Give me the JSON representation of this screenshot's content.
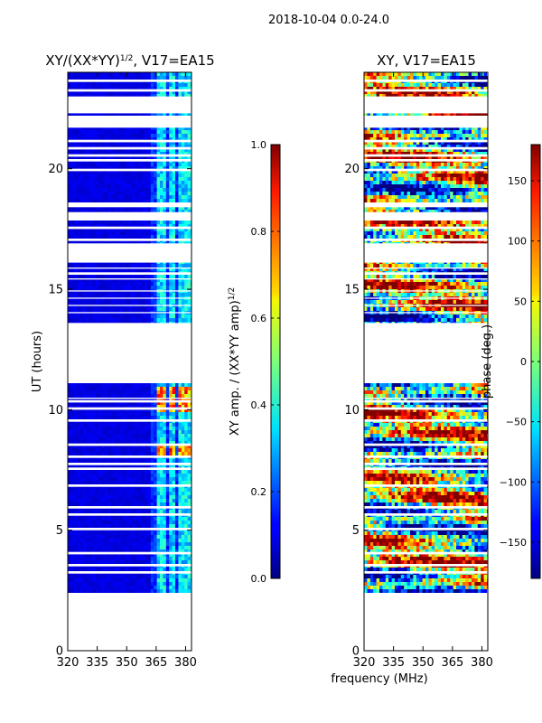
{
  "figure": {
    "suptitle": "2018-10-04 0.0-24.0",
    "shared_xlabel": "frequency (MHz)"
  },
  "chart_data": [
    {
      "type": "heatmap",
      "title": "XY/(XX*YY)",
      "title_superscript": "1/2",
      "title_suffix": ", V17=EA15",
      "ylabel": "UT (hours)",
      "xlim": [
        320,
        383
      ],
      "ylim": [
        0,
        24
      ],
      "xticks": [
        320,
        335,
        350,
        365,
        380
      ],
      "yticks": [
        0,
        5,
        10,
        15,
        20
      ],
      "data_time_range_hours": [
        2.4,
        24.0
      ],
      "bright_channel_centers_mhz": [
        367.5,
        372.5,
        377.5,
        382.0
      ],
      "colorbar": {
        "label": "XY amp. / (XX*YY amp)",
        "label_superscript": "1/2",
        "vmin": 0.0,
        "vmax": 1.0,
        "ticks": [
          0.0,
          0.2,
          0.4,
          0.6,
          0.8,
          1.0
        ],
        "tick_labels": [
          "0.0",
          "0.2",
          "0.4",
          "0.6",
          "0.8",
          "1.0"
        ],
        "colormap": "jet"
      }
    },
    {
      "type": "heatmap",
      "title": "XY, V17=EA15",
      "ylabel": "",
      "xlim": [
        320,
        383
      ],
      "ylim": [
        0,
        24
      ],
      "xticks": [
        320,
        335,
        350,
        365,
        380
      ],
      "yticks": [
        0,
        5,
        10,
        15,
        20
      ],
      "data_time_range_hours": [
        2.4,
        24.0
      ],
      "colorbar": {
        "label": "phase (deg.)",
        "vmin": -180,
        "vmax": 180,
        "ticks": [
          -150,
          -100,
          -50,
          0,
          50,
          100,
          150
        ],
        "tick_labels": [
          "−150",
          "−100",
          "−50",
          "0",
          "50",
          "100",
          "150"
        ],
        "colormap": "jet"
      }
    }
  ],
  "flag_gaps_hours": [
    [
      0.0,
      2.4
    ],
    [
      3.2,
      3.3
    ],
    [
      3.5,
      3.6
    ],
    [
      4.0,
      4.1
    ],
    [
      5.0,
      5.1
    ],
    [
      5.6,
      5.7
    ],
    [
      5.9,
      6.0
    ],
    [
      6.8,
      6.9
    ],
    [
      7.5,
      7.6
    ],
    [
      7.7,
      7.8
    ],
    [
      8.0,
      8.1
    ],
    [
      8.5,
      8.6
    ],
    [
      9.5,
      9.6
    ],
    [
      10.0,
      10.1
    ],
    [
      10.3,
      10.4
    ],
    [
      10.45,
      10.5
    ],
    [
      11.1,
      13.6
    ],
    [
      14.0,
      14.05
    ],
    [
      14.3,
      14.35
    ],
    [
      14.6,
      14.65
    ],
    [
      14.9,
      14.95
    ],
    [
      15.4,
      15.45
    ],
    [
      15.6,
      15.7
    ],
    [
      15.85,
      15.9
    ],
    [
      16.1,
      16.9
    ],
    [
      17.0,
      17.1
    ],
    [
      17.5,
      17.6
    ],
    [
      17.85,
      18.2
    ],
    [
      18.4,
      18.6
    ],
    [
      19.9,
      20.0
    ],
    [
      20.3,
      20.4
    ],
    [
      20.5,
      20.6
    ],
    [
      20.8,
      20.9
    ],
    [
      21.1,
      21.2
    ],
    [
      21.7,
      22.2
    ],
    [
      22.3,
      23.0
    ],
    [
      23.2,
      23.3
    ],
    [
      23.6,
      23.7
    ]
  ],
  "colors": {
    "axis": "#000000",
    "background": "#ffffff",
    "flagged": "#ffffff"
  }
}
